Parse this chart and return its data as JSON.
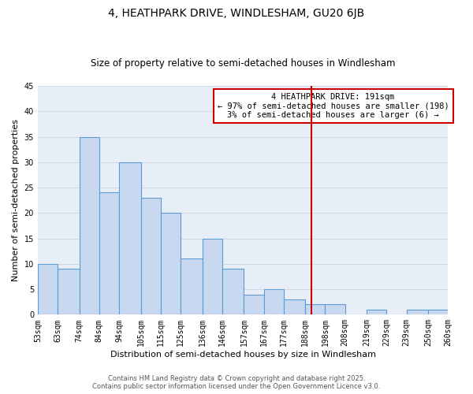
{
  "title": "4, HEATHPARK DRIVE, WINDLESHAM, GU20 6JB",
  "subtitle": "Size of property relative to semi-detached houses in Windlesham",
  "xlabel": "Distribution of semi-detached houses by size in Windlesham",
  "ylabel": "Number of semi-detached properties",
  "bins_left": [
    53,
    63,
    74,
    84,
    94,
    105,
    115,
    125,
    136,
    146,
    157,
    167,
    177,
    188,
    198,
    208,
    219,
    229,
    239,
    250
  ],
  "bins_right": [
    63,
    74,
    84,
    94,
    105,
    115,
    125,
    136,
    146,
    157,
    167,
    177,
    188,
    198,
    208,
    219,
    229,
    239,
    250,
    260
  ],
  "counts": [
    10,
    9,
    35,
    24,
    30,
    23,
    20,
    11,
    15,
    9,
    4,
    5,
    3,
    2,
    2,
    0,
    1,
    0,
    1,
    1
  ],
  "bar_facecolor": "#c8d8f0",
  "bar_edgecolor": "#5b9bd5",
  "grid_color": "#d0d8e8",
  "background_color": "#e8eef8",
  "vline_x": 191,
  "vline_color": "#cc0000",
  "annotation_title": "4 HEATHPARK DRIVE: 191sqm",
  "annotation_line1": "← 97% of semi-detached houses are smaller (198)",
  "annotation_line2": "3% of semi-detached houses are larger (6) →",
  "annotation_box_edgecolor": "#cc0000",
  "tick_labels": [
    "53sqm",
    "63sqm",
    "74sqm",
    "84sqm",
    "94sqm",
    "105sqm",
    "115sqm",
    "125sqm",
    "136sqm",
    "146sqm",
    "157sqm",
    "167sqm",
    "177sqm",
    "188sqm",
    "198sqm",
    "208sqm",
    "219sqm",
    "229sqm",
    "239sqm",
    "250sqm",
    "260sqm"
  ],
  "ylim": [
    0,
    45
  ],
  "yticks": [
    0,
    5,
    10,
    15,
    20,
    25,
    30,
    35,
    40,
    45
  ],
  "footer1": "Contains HM Land Registry data © Crown copyright and database right 2025.",
  "footer2": "Contains public sector information licensed under the Open Government Licence v3.0.",
  "title_fontsize": 10,
  "subtitle_fontsize": 8.5,
  "axis_label_fontsize": 8,
  "tick_fontsize": 7,
  "annotation_fontsize": 7.5,
  "footer_fontsize": 6
}
